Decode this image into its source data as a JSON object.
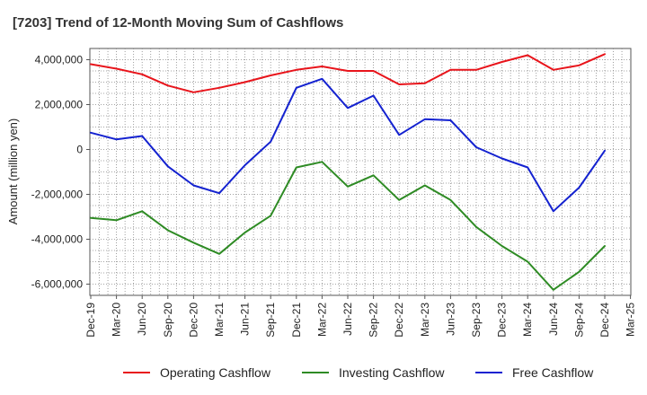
{
  "chart_data": {
    "type": "line",
    "title": "[7203]  Trend of 12-Month Moving Sum of Cashflows",
    "ylabel": "Amount (million yen)",
    "ylim": [
      -6500000,
      4500000
    ],
    "yticks": [
      -6000000,
      -4000000,
      -2000000,
      0,
      2000000,
      4000000
    ],
    "ytick_labels": [
      "-6,000,000",
      "-4,000,000",
      "-2,000,000",
      "0",
      "2,000,000",
      "4,000,000"
    ],
    "x_tick_labels": [
      "Dec-19",
      "Mar-20",
      "Jun-20",
      "Sep-20",
      "Dec-20",
      "Mar-21",
      "Jun-21",
      "Sep-21",
      "Dec-21",
      "Mar-22",
      "Jun-22",
      "Sep-22",
      "Dec-22",
      "Mar-23",
      "Jun-23",
      "Sep-23",
      "Dec-23",
      "Mar-24",
      "Jun-24",
      "Sep-24",
      "Dec-24",
      "Mar-25"
    ],
    "x": [
      "Dec-19",
      "Mar-20",
      "Jun-20",
      "Sep-20",
      "Dec-20",
      "Mar-21",
      "Jun-21",
      "Sep-21",
      "Dec-21",
      "Mar-22",
      "Jun-22",
      "Sep-22",
      "Dec-22",
      "Mar-23",
      "Jun-23",
      "Sep-23",
      "Dec-23",
      "Mar-24",
      "Jun-24",
      "Sep-24",
      "Dec-24"
    ],
    "grid": true,
    "legend_position": "bottom",
    "series": [
      {
        "name": "Operating Cashflow",
        "color": "#e8141b",
        "values": [
          3800000,
          3600000,
          3350000,
          2850000,
          2550000,
          2750000,
          3000000,
          3300000,
          3550000,
          3700000,
          3500000,
          3500000,
          2900000,
          2950000,
          3550000,
          3550000,
          3900000,
          4200000,
          3550000,
          3750000,
          4250000
        ]
      },
      {
        "name": "Investing Cashflow",
        "color": "#2e8b24",
        "values": [
          -3050000,
          -3150000,
          -2750000,
          -3600000,
          -4150000,
          -4650000,
          -3700000,
          -2950000,
          -800000,
          -550000,
          -1650000,
          -1150000,
          -2250000,
          -1600000,
          -2250000,
          -3450000,
          -4300000,
          -5000000,
          -6250000,
          -5450000,
          -4300000
        ]
      },
      {
        "name": "Free Cashflow",
        "color": "#1422d0",
        "values": [
          750000,
          450000,
          600000,
          -750000,
          -1600000,
          -1950000,
          -700000,
          350000,
          2750000,
          3150000,
          1850000,
          2400000,
          650000,
          1350000,
          1300000,
          100000,
          -400000,
          -800000,
          -2750000,
          -1700000,
          -50000
        ]
      }
    ]
  }
}
